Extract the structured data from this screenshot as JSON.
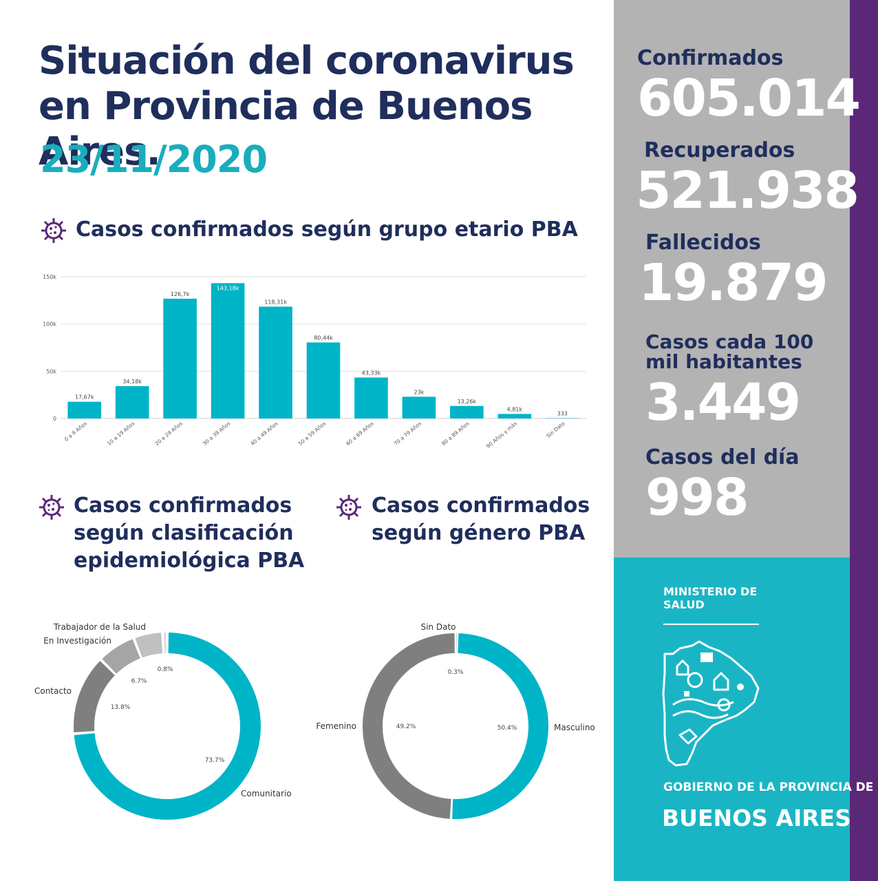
{
  "header": {
    "title": "Situación del coronavirus en Provincia de Buenos Aires.",
    "date": "23/11/2020"
  },
  "sections": {
    "age_title": "Casos confirmados según grupo etario PBA",
    "epi_title": "Casos confirmados según clasificación epidemiológica PBA",
    "gender_title": "Casos confirmados según género PBA"
  },
  "stats": {
    "confirmados_label": "Confirmados",
    "confirmados_value": "605.014",
    "recuperados_label": "Recuperados",
    "recuperados_value": "521.938",
    "fallecidos_label": "Fallecidos",
    "fallecidos_value": "19.879",
    "casos100_label": "Casos cada 100 mil habitantes",
    "casos100_value": "3.449",
    "casosdia_label": "Casos del día",
    "casosdia_value": "998"
  },
  "footer": {
    "ministry": "MINISTERIO DE SALUD",
    "gov": "GOBIERNO DE LA PROVINCIA DE",
    "ba": "BUENOS AIRES"
  },
  "colors": {
    "navy": "#1f2e5c",
    "teal": "#1aadbd",
    "bar": "#00b4c8",
    "gray_panel": "#b3b3b3",
    "purple": "#5b2878"
  },
  "chart_data": [
    {
      "type": "bar",
      "categories": [
        "0 a 9 Años",
        "10 a 19 Años",
        "20 a 29 Años",
        "30 a 39 Años",
        "40 a 49 Años",
        "50 a 59 Años",
        "60 a 69 Años",
        "70 a 79 Años",
        "80 a 89 Años",
        "90 Años y más",
        "Sin Dato"
      ],
      "values": [
        17670,
        34180,
        126700,
        143180,
        118310,
        80440,
        43330,
        23000,
        13260,
        4810,
        333
      ],
      "data_labels": [
        "17,67k",
        "34,18k",
        "126,7k",
        "143,18k",
        "118,31k",
        "80,44k",
        "43,33k",
        "23k",
        "13,26k",
        "4,81k",
        "333"
      ],
      "y_ticks": [
        0,
        50000,
        100000,
        150000
      ],
      "y_tick_labels": [
        "0",
        "50k",
        "100k",
        "150k"
      ],
      "ylim": [
        0,
        150000
      ],
      "grid": true
    },
    {
      "type": "pie",
      "donut": true,
      "slices": [
        {
          "label": "Comunitario",
          "value": 73.7,
          "text": "73.7%",
          "color": "#00b4c8"
        },
        {
          "label": "Contacto",
          "value": 13.8,
          "text": "13.8%",
          "color": "#7f7f7f"
        },
        {
          "label": "En Investigación",
          "value": 6.7,
          "text": "6.7%",
          "color": "#a5a5a5"
        },
        {
          "label": "Trabajador de la Salud",
          "value": 5.0,
          "text": "",
          "color": "#c0c0c0"
        },
        {
          "label": "",
          "value": 0.8,
          "text": "0.8%",
          "color": "#d8d8d8"
        }
      ]
    },
    {
      "type": "pie",
      "donut": true,
      "slices": [
        {
          "label": "Masculino",
          "value": 50.4,
          "text": "50.4%",
          "color": "#00b4c8"
        },
        {
          "label": "Femenino",
          "value": 49.2,
          "text": "49.2%",
          "color": "#7f7f7f"
        },
        {
          "label": "Sin Dato",
          "value": 0.3,
          "text": "0.3%",
          "color": "#c8c8c8"
        }
      ]
    }
  ]
}
